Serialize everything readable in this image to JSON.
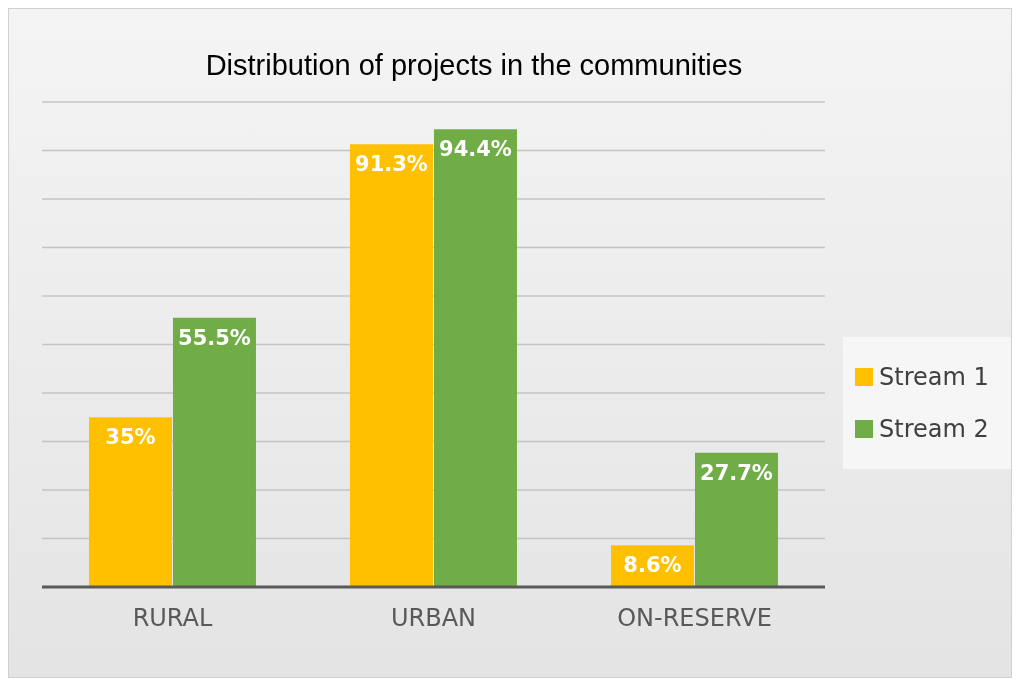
{
  "chart_data": {
    "type": "bar",
    "title": "Distribution of projects in the communities",
    "categories": [
      "RURAL",
      "URBAN",
      "ON-RESERVE"
    ],
    "series": [
      {
        "name": "Stream 1",
        "color": "#ffc000",
        "values": [
          35,
          91.3,
          8.6
        ],
        "value_labels": [
          "35%",
          "91.3%",
          "8.6%"
        ]
      },
      {
        "name": "Stream 2",
        "color": "#70ad47",
        "values": [
          55.5,
          94.4,
          27.7
        ],
        "value_labels": [
          "55.5%",
          "94.4%",
          "27.7%"
        ]
      }
    ],
    "ylim": [
      0,
      100
    ],
    "yticks": [
      {
        "value": 0,
        "label": null
      },
      {
        "value": 10,
        "label": null
      },
      {
        "value": 20,
        "label": null
      },
      {
        "value": 30,
        "label": null
      },
      {
        "value": 40,
        "label": null
      },
      {
        "value": 50,
        "label": null
      },
      {
        "value": 60,
        "label": null
      },
      {
        "value": 70,
        "label": null
      },
      {
        "value": 80,
        "label": null
      },
      {
        "value": 90,
        "label": null
      },
      {
        "value": 100,
        "label": null
      }
    ],
    "tick_labels": "x",
    "grid": "y",
    "legend": "right"
  }
}
